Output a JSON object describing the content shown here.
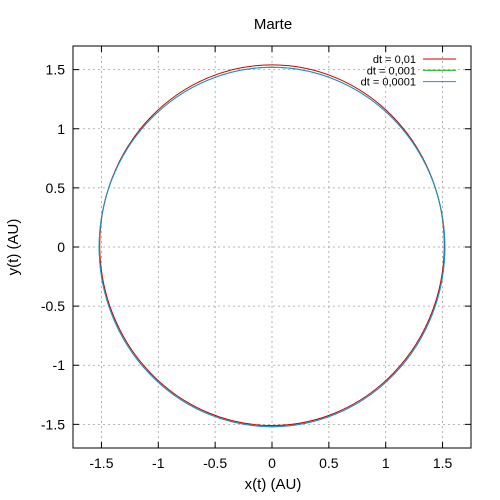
{
  "chart_data": {
    "type": "line",
    "title": "Marte",
    "xlabel": "x(t) (AU)",
    "ylabel": "y(t) (AU)",
    "xlim": [
      -1.75,
      1.75
    ],
    "ylim": [
      -1.7,
      1.7
    ],
    "xticks": [
      -1.5,
      -1,
      -0.5,
      0,
      0.5,
      1,
      1.5
    ],
    "xtick_labels": [
      "-1.5",
      "-1",
      "-0.5",
      "0",
      "0.5",
      "1",
      "1.5"
    ],
    "yticks": [
      -1.5,
      -1,
      -0.5,
      0,
      0.5,
      1,
      1.5
    ],
    "ytick_labels": [
      "-1.5",
      "-1",
      "-0.5",
      "0",
      "0.5",
      "1",
      "1.5"
    ],
    "grid": true,
    "legend_position": "top-right",
    "series": [
      {
        "name": "dt = 0,01",
        "color": "#cc0000",
        "shape": "ellipse",
        "center": [
          0.0,
          0.015
        ],
        "radius_x": 1.515,
        "radius_y": 1.525
      },
      {
        "name": "dt = 0,001",
        "color": "#00aa00",
        "shape": "ellipse",
        "center": [
          0.0,
          0.0
        ],
        "radius_x": 1.52,
        "radius_y": 1.52
      },
      {
        "name": "dt = 0,0001",
        "color": "#1f8fd6",
        "shape": "ellipse",
        "center": [
          0.0,
          0.0
        ],
        "radius_x": 1.52,
        "radius_y": 1.52
      }
    ]
  }
}
